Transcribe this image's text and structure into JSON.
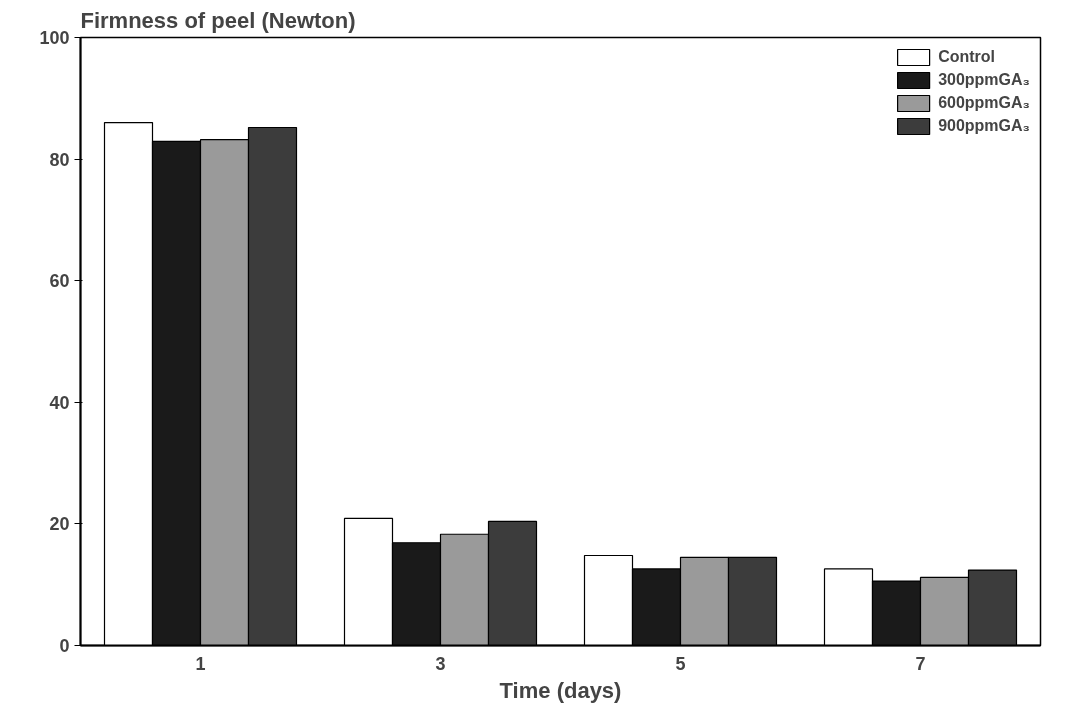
{
  "chart_data": {
    "type": "bar",
    "title": "Firmness of peel (Newton)",
    "xlabel": "Time (days)",
    "categories": [
      "1",
      "3",
      "5",
      "7"
    ],
    "series": [
      {
        "name": "Control",
        "color": "#ffffff",
        "values": [
          86,
          20.9,
          14.8,
          12.6
        ]
      },
      {
        "name": "300ppmGA₃",
        "color": "#1a1a1a",
        "values": [
          82.9,
          16.9,
          12.6,
          10.6
        ]
      },
      {
        "name": "600ppmGA₃",
        "color": "#9a9a9a",
        "values": [
          83.2,
          18.3,
          14.5,
          11.2
        ]
      },
      {
        "name": "900ppmGA₃",
        "color": "#3c3c3c",
        "values": [
          85.2,
          20.4,
          14.5,
          12.4
        ]
      }
    ],
    "ylim": [
      0,
      100
    ],
    "yticks": [
      0,
      20,
      40,
      60,
      80,
      100
    ],
    "grid": false,
    "legend": "top right"
  }
}
